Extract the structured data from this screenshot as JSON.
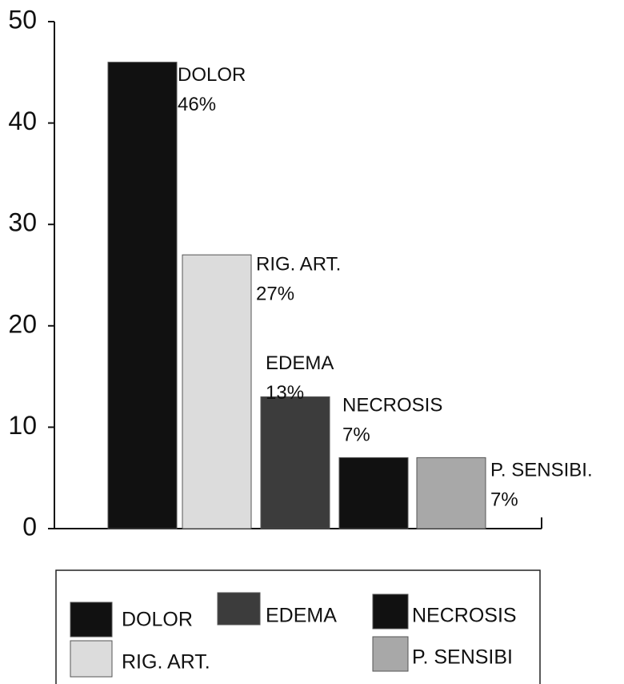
{
  "chart_data": {
    "type": "bar",
    "categories": [
      "DOLOR",
      "RIG. ART.",
      "EDEMA",
      "NECROSIS",
      "P. SENSIBI."
    ],
    "values": [
      46,
      27,
      13,
      7,
      7
    ],
    "value_labels": [
      "46%",
      "27%",
      "13%",
      "7%",
      "7%"
    ],
    "colors": [
      "#111111",
      "#dcdcdc",
      "#3c3c3c",
      "#111111",
      "#a8a8a8"
    ],
    "ylim": [
      0,
      50
    ],
    "yticks": [
      0,
      10,
      20,
      30,
      40,
      50
    ],
    "legend": [
      {
        "name": "DOLOR",
        "color": "#111111"
      },
      {
        "name": "EDEMA",
        "color": "#3c3c3c"
      },
      {
        "name": "NECROSIS",
        "color": "#111111"
      },
      {
        "name": "RIG. ART.",
        "color": "#dcdcdc"
      },
      {
        "name": "P. SENSIBI",
        "color": "#a8a8a8"
      }
    ]
  }
}
